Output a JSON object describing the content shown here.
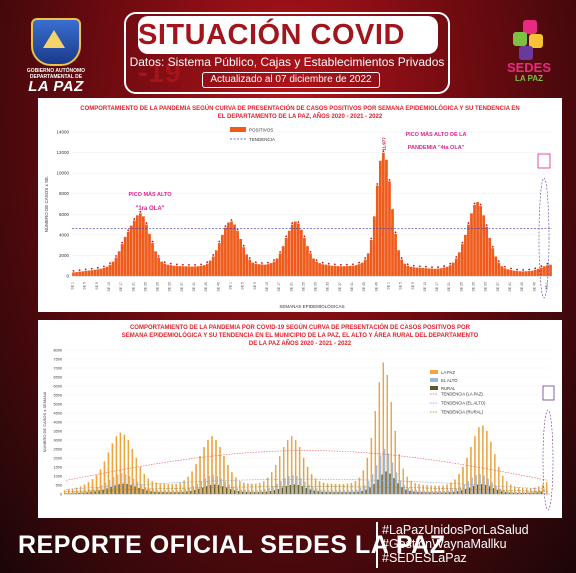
{
  "header": {
    "title": "SITUACIÓN COVID -19",
    "subtitle": "Datos: Sistema Público, Cajas y Establecimientos Privados",
    "updated": "Actualizado al 07 diciembre de 2022"
  },
  "logos": {
    "left_org": "GOBIERNO AUTÓNOMO DEPARTAMENTAL DE",
    "left_name": "LA PAZ",
    "right_name_1": "SEDES",
    "right_name_2": "LA PAZ"
  },
  "footer": {
    "main": "REPORTE OFICIAL SEDES LA PAZ",
    "hashtags": [
      "#LaPazUnidosPorLaSalud",
      "#GestiónWaynaMallku",
      "#SEDESLaPaz"
    ]
  },
  "colors": {
    "bar_main": "#f05a1a",
    "trend": "#3a3aa8",
    "annotation": "#e0208c",
    "la_paz": "#f3a53c",
    "el_alto": "#9fb8d8",
    "rural": "#5a5a2a",
    "title_red": "#e0222a"
  },
  "chart_data": [
    {
      "type": "bar",
      "title": "COMPORTAMIENTO DE LA PANDEMIA SEGÚN CURVA DE PRESENTACIÓN DE CASOS POSITIVOS POR SEMANA EPIDEMIOLÓGICA Y SU TENDENCIA EN EL DEPARTAMENTO DE LA PAZ, AÑOS 2020 - 2021 - 2022",
      "xlabel": "SEMANAS EPIDEMIOLÓGICAS",
      "ylabel": "NÚMERO DE CASOS x SE.",
      "ylim": [
        0,
        14000
      ],
      "yticks": [
        0,
        2000,
        4000,
        6000,
        8000,
        10000,
        12000,
        14000
      ],
      "legend": [
        "POSITIVOS",
        "TENDENCIA"
      ],
      "legend_position": "top-center",
      "annotations": [
        {
          "text": "PICO MÁS ALTO",
          "subtext": "\"1ra OLA\""
        },
        {
          "text": "PICO MÁS ALTO DE LA",
          "subtext": "PANDEMIA \"4ta OLA\""
        }
      ],
      "peak_label": "11.977",
      "series": [
        {
          "name": "POSITIVOS",
          "values": [
            350,
            380,
            420,
            450,
            500,
            520,
            560,
            600,
            650,
            700,
            780,
            900,
            1100,
            1400,
            1800,
            2400,
            3100,
            3800,
            4300,
            4900,
            5400,
            5900,
            6100,
            5800,
            5000,
            4100,
            3200,
            2400,
            1800,
            1400,
            1200,
            1100,
            1050,
            1000,
            980,
            960,
            950,
            940,
            930,
            920,
            930,
            950,
            980,
            1050,
            1200,
            1500,
            1900,
            2500,
            3200,
            4000,
            4700,
            5200,
            5300,
            5000,
            4400,
            3600,
            2800,
            2100,
            1600,
            1300,
            1200,
            1150,
            1120,
            1100,
            1150,
            1250,
            1400,
            1700,
            2200,
            2900,
            3700,
            4400,
            5000,
            5300,
            5100,
            4500,
            3700,
            2900,
            2200,
            1700,
            1400,
            1250,
            1150,
            1100,
            1050,
            1000,
            980,
            960,
            950,
            950,
            960,
            980,
            1000,
            1050,
            1150,
            1300,
            1600,
            2200,
            3500,
            5800,
            8800,
            11200,
            11977,
            11300,
            9200,
            6500,
            4100,
            2500,
            1600,
            1200,
            1000,
            900,
            850,
            820,
            800,
            780,
            760,
            740,
            720,
            700,
            720,
            760,
            820,
            900,
            1050,
            1300,
            1700,
            2300,
            3100,
            4000,
            5000,
            6100,
            6900,
            7200,
            6800,
            5900,
            4800,
            3700,
            2700,
            1900,
            1300,
            950,
            750,
            650,
            580,
            520,
            480,
            460,
            450,
            460,
            480,
            520,
            600,
            700,
            820,
            950,
            1050,
            1100
          ]
        },
        {
          "name": "TENDENCIA",
          "values": [
            4600,
            4600,
            4600,
            4600,
            4600,
            4600,
            4600,
            4600,
            4600,
            4600,
            4600,
            4600,
            4600,
            4600,
            4600,
            4600,
            4600,
            4600,
            4600,
            4600,
            4600,
            4600,
            4600,
            4600,
            4600,
            4600,
            4600,
            4600,
            4600,
            4600,
            4600,
            4600,
            4600,
            4600,
            4600,
            4600,
            4600,
            4600,
            4600,
            4600,
            4600,
            4600,
            4600,
            4600,
            4600,
            4600,
            4600,
            4600,
            4600,
            4600,
            4600,
            4600,
            4600,
            4600,
            4600,
            4600,
            4600,
            4600,
            4600,
            4600,
            4600,
            4600,
            4600,
            4600,
            4600,
            4600,
            4600,
            4600,
            4600,
            4600,
            4600,
            4600,
            4600,
            4600,
            4600,
            4600,
            4600,
            4600,
            4600,
            4600,
            4600,
            4600,
            4600,
            4600,
            4600,
            4600,
            4600,
            4600,
            4600,
            4600,
            4600,
            4600,
            4600,
            4600,
            4600,
            4600,
            4600,
            4600,
            4600,
            4600,
            4600,
            4600,
            4600,
            4600,
            4600,
            4600,
            4600,
            4600,
            4600,
            4600,
            4600,
            4600,
            4600,
            4600,
            4600,
            4600,
            4600,
            4600,
            4600,
            4600,
            4600,
            4600,
            4600,
            4600,
            4600,
            4600,
            4600,
            4600,
            4600,
            4600,
            4600,
            4600,
            4600,
            4600,
            4600,
            4600,
            4600,
            4600,
            4600,
            4600,
            4600,
            4600,
            4600,
            4600,
            4600,
            4600,
            4600,
            4600,
            4600,
            4600,
            4600,
            4600,
            4600,
            4600,
            4600,
            4600,
            4600,
            4600,
            4600
          ]
        }
      ]
    },
    {
      "type": "bar",
      "title": "COMPORTAMIENTO DE LA PANDEMIA POR COVID-19 SEGÚN CURVA DE PRESENTACIÓN DE CASOS POSITIVOS POR SEMANA EPIDEMIOLÓGICA Y SU TENDENCIA EN EL MUNICIPIO DE LA PAZ, EL ALTO Y ÁREA RURAL DEL DEPARTAMENTO DE LA PAZ AÑOS 2020 - 2021 - 2022",
      "ylabel": "NÚMERO DE CASOS x SEMANA",
      "ylim": [
        0,
        8000
      ],
      "yticks": [
        0,
        500,
        1000,
        1500,
        2000,
        2500,
        3000,
        3500,
        4000,
        4500,
        5000,
        5500,
        6000,
        6500,
        7000,
        7500,
        8000
      ],
      "legend": [
        "LA PAZ",
        "EL ALTO",
        "RURAL",
        "TENDENCIA (LA PAZ)",
        "TENDENCIA (EL ALTO)",
        "TENDENCIA (RURAL)"
      ],
      "legend_position": "top-right",
      "series": [
        {
          "name": "LA PAZ",
          "values": [
            200,
            250,
            300,
            350,
            420,
            520,
            650,
            820,
            1050,
            1350,
            1800,
            2300,
            2800,
            3200,
            3400,
            3300,
            3000,
            2500,
            2000,
            1500,
            1100,
            850,
            700,
            620,
            580,
            560,
            550,
            540,
            560,
            620,
            750,
            950,
            1250,
            1650,
            2100,
            2600,
            3000,
            3200,
            3000,
            2600,
            2100,
            1600,
            1200,
            900,
            720,
            620,
            580,
            560,
            560,
            600,
            700,
            900,
            1200,
            1600,
            2100,
            2600,
            3000,
            3200,
            3000,
            2600,
            2000,
            1500,
            1100,
            850,
            700,
            620,
            580,
            560,
            550,
            540,
            540,
            560,
            600,
            700,
            900,
            1300,
            2000,
            3100,
            4600,
            6200,
            7300,
            6600,
            5100,
            3500,
            2200,
            1400,
            950,
            720,
            600,
            540,
            500,
            480,
            460,
            450,
            450,
            470,
            520,
            620,
            800,
            1100,
            1500,
            2000,
            2600,
            3200,
            3700,
            3800,
            3500,
            2900,
            2200,
            1500,
            1000,
            700,
            520,
            420,
            360,
            330,
            320,
            330,
            360,
            420,
            520,
            650
          ]
        },
        {
          "name": "EL ALTO",
          "values": [
            60,
            80,
            100,
            120,
            150,
            190,
            240,
            300,
            380,
            480,
            620,
            780,
            950,
            1080,
            1150,
            1100,
            1000,
            850,
            680,
            520,
            390,
            300,
            250,
            220,
            210,
            200,
            200,
            200,
            210,
            230,
            280,
            350,
            450,
            580,
            730,
            880,
            1000,
            1070,
            1000,
            870,
            700,
            540,
            410,
            320,
            260,
            230,
            210,
            200,
            200,
            220,
            260,
            330,
            430,
            560,
            720,
            880,
            1000,
            1060,
            1000,
            870,
            680,
            510,
            380,
            300,
            250,
            220,
            210,
            200,
            200,
            200,
            200,
            210,
            220,
            260,
            330,
            480,
            720,
            1100,
            1600,
            2150,
            2500,
            2250,
            1750,
            1200,
            760,
            480,
            330,
            260,
            220,
            200,
            190,
            180,
            170,
            170,
            170,
            180,
            200,
            240,
            310,
            410,
            550,
            720,
            900,
            1050,
            1100,
            1020,
            850,
            650,
            450,
            300,
            210,
            160,
            130,
            120,
            120,
            120,
            130,
            150,
            180,
            220
          ]
        },
        {
          "name": "RURAL",
          "values": [
            30,
            40,
            50,
            60,
            75,
            95,
            120,
            150,
            190,
            240,
            310,
            390,
            480,
            540,
            580,
            560,
            500,
            420,
            340,
            260,
            200,
            150,
            125,
            110,
            105,
            100,
            100,
            100,
            105,
            115,
            140,
            175,
            225,
            290,
            365,
            440,
            500,
            535,
            500,
            435,
            350,
            270,
            205,
            160,
            130,
            115,
            105,
            100,
            100,
            110,
            130,
            165,
            215,
            280,
            360,
            440,
            500,
            530,
            500,
            435,
            340,
            255,
            190,
            150,
            125,
            110,
            105,
            100,
            100,
            100,
            100,
            105,
            110,
            130,
            165,
            240,
            360,
            550,
            800,
            1080,
            1250,
            1130,
            880,
            600,
            380,
            240,
            165,
            130,
            110,
            100,
            95,
            90,
            85,
            85,
            85,
            90,
            100,
            120,
            155,
            205,
            275,
            360,
            450,
            525,
            550,
            510,
            425,
            325,
            225,
            150,
            105,
            80,
            65,
            60,
            60,
            60,
            65,
            75,
            90,
            110
          ]
        }
      ]
    }
  ]
}
